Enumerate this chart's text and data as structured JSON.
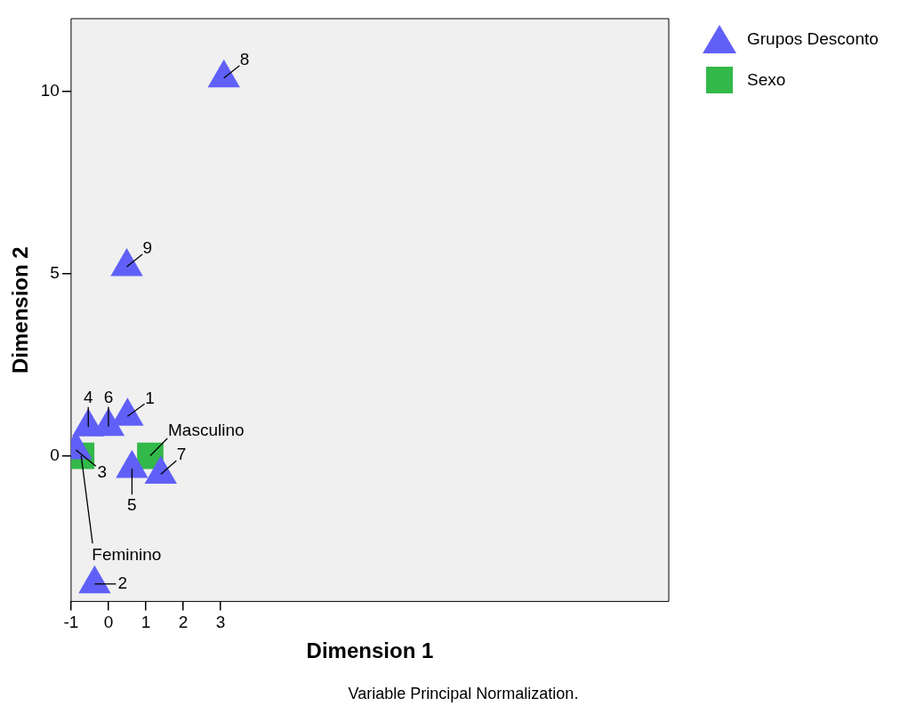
{
  "chart_data": {
    "type": "scatter",
    "xlabel": "Dimension 1",
    "ylabel": "Dimension 2",
    "xlim": [
      -1,
      15
    ],
    "ylim": [
      -4,
      12
    ],
    "xticks": [
      -1,
      0,
      1,
      2,
      3
    ],
    "yticks": [
      0,
      5,
      10
    ],
    "grid": false,
    "legend": "right",
    "series": [
      {
        "name": "Grupos Desconto",
        "color": "#6060f8",
        "marker": "triangle",
        "x": [
          0.51,
          -0.37,
          -0.87,
          -0.54,
          0.63,
          0,
          1.4,
          3.09,
          0.49
        ],
        "values": [
          1.08,
          -3.52,
          0.16,
          0.79,
          -0.35,
          0.8,
          -0.51,
          10.37,
          5.19
        ]
      },
      {
        "name": "Sexo",
        "color": "#33b84a",
        "marker": "square",
        "x": [
          -0.73,
          1.12
        ],
        "values": [
          0,
          0
        ]
      }
    ],
    "annotations": [
      "1",
      "2",
      "3",
      "4",
      "5",
      "6",
      "7",
      "8",
      "9",
      {
        "text": "Feminino",
        "x": -0.73,
        "y": 0
      },
      {
        "text": "Masculino",
        "x": 1.12,
        "y": 0
      },
      "Variable Principal Normalization."
    ]
  }
}
